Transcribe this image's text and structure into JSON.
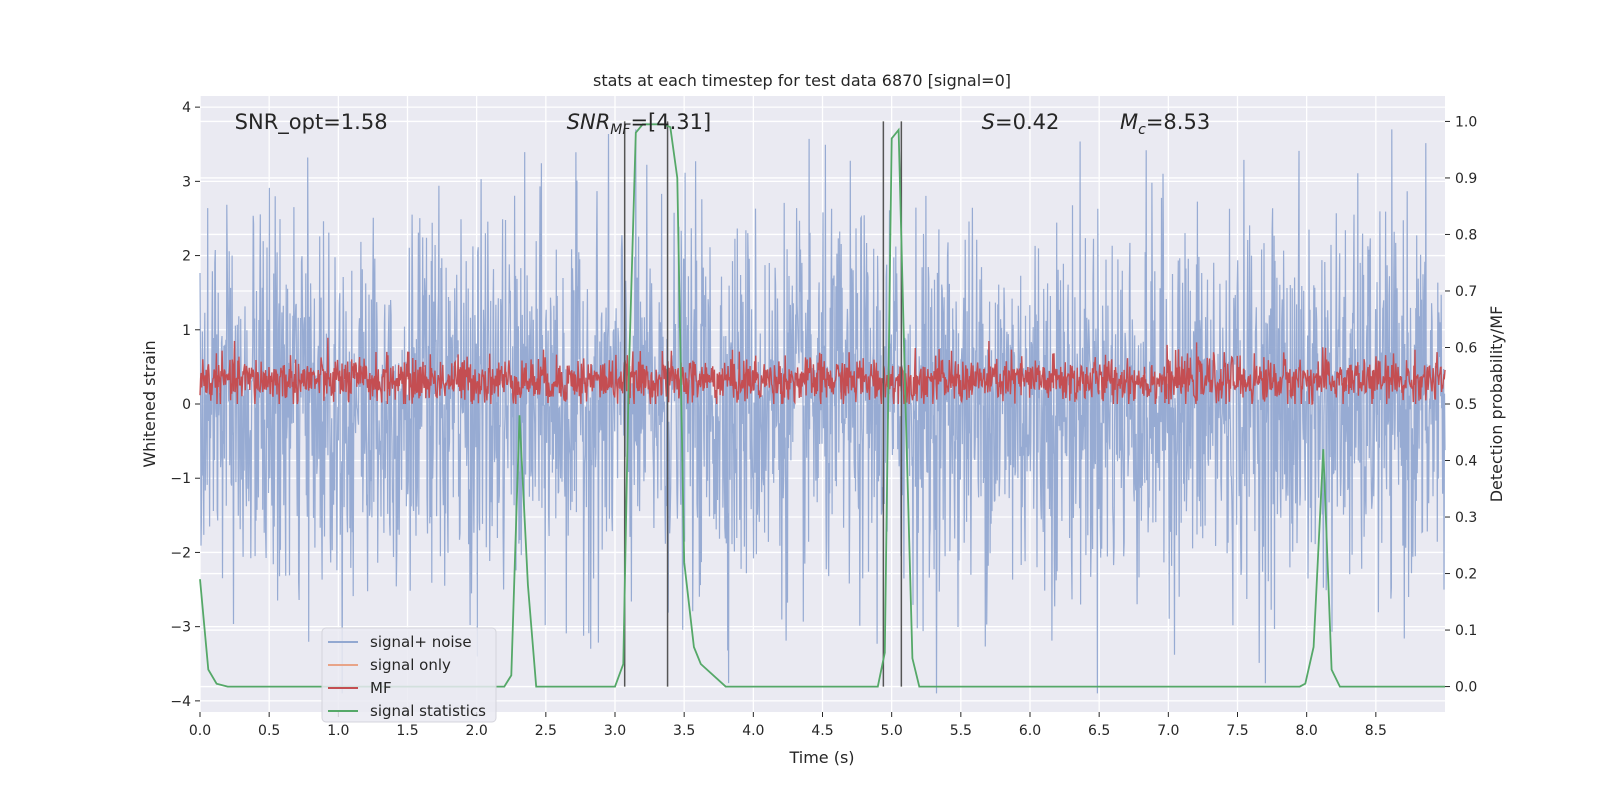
{
  "chart_data": {
    "type": "line",
    "title": "stats at each timestep for test data 6870 [signal=0]",
    "xlabel": "Time (s)",
    "ylabel": "Whitened strain",
    "y2label": "Detection probability/MF",
    "xlim": [
      0,
      9
    ],
    "ylim": [
      -4.15,
      4.15
    ],
    "y2lim": [
      -0.045,
      1.045
    ],
    "grid": true,
    "legend_position": "lower-left",
    "x_ticks": [
      "0.0",
      "0.5",
      "1.0",
      "1.5",
      "2.0",
      "2.5",
      "3.0",
      "3.5",
      "4.0",
      "4.5",
      "5.0",
      "5.5",
      "6.0",
      "6.5",
      "7.0",
      "7.5",
      "8.0",
      "8.5"
    ],
    "x_tick_values": [
      0,
      0.5,
      1,
      1.5,
      2,
      2.5,
      3,
      3.5,
      4,
      4.5,
      5,
      5.5,
      6,
      6.5,
      7,
      7.5,
      8,
      8.5
    ],
    "y_ticks": [
      "−4",
      "−3",
      "−2",
      "−1",
      "0",
      "1",
      "2",
      "3",
      "4"
    ],
    "y_tick_values": [
      -4,
      -3,
      -2,
      -1,
      0,
      1,
      2,
      3,
      4
    ],
    "y2_ticks": [
      "0.0",
      "0.1",
      "0.2",
      "0.3",
      "0.4",
      "0.5",
      "0.6",
      "0.7",
      "0.8",
      "0.9",
      "1.0"
    ],
    "y2_tick_values": [
      0,
      0.1,
      0.2,
      0.3,
      0.4,
      0.5,
      0.6,
      0.7,
      0.8,
      0.9,
      1.0
    ],
    "annotations": [
      {
        "text": "SNR_opt=1.58",
        "x": 0.2,
        "y": 3.8
      },
      {
        "text": "SNR",
        "sub": "MF",
        "rest": "=[4.31]",
        "italic": true,
        "x": 2.6,
        "y": 3.8
      },
      {
        "text": "S",
        "rest": "=0.42",
        "italic": true,
        "x": 5.6,
        "y": 3.8
      },
      {
        "text": "M",
        "sub": "c",
        "rest": "=8.53",
        "italic": true,
        "x": 6.6,
        "y": 3.8
      }
    ],
    "vertical_lines": [
      3.07,
      3.38,
      4.94,
      5.07
    ],
    "series": [
      {
        "name": "signal+ noise",
        "color": "#92a8d1",
        "axis": "left",
        "style": "noise",
        "amplitude_range": [
          -3.9,
          3.7
        ]
      },
      {
        "name": "signal only",
        "color": "#e8a488",
        "axis": "left",
        "values": []
      },
      {
        "name": "MF",
        "color": "#c44e52",
        "axis": "left",
        "style": "noise",
        "amplitude_range": [
          0.0,
          0.95
        ]
      },
      {
        "name": "signal statistics",
        "color": "#55a868",
        "axis": "right",
        "x": [
          0.0,
          0.06,
          0.12,
          0.2,
          2.2,
          2.25,
          2.31,
          2.37,
          2.43,
          2.5,
          3.0,
          3.06,
          3.1,
          3.15,
          3.2,
          3.35,
          3.4,
          3.45,
          3.5,
          3.57,
          3.62,
          3.8,
          3.85,
          4.9,
          4.95,
          5.0,
          5.05,
          5.1,
          5.15,
          5.2,
          5.5,
          7.95,
          7.99,
          8.05,
          8.12,
          8.18,
          8.24,
          8.3,
          9.0
        ],
        "y": [
          0.19,
          0.03,
          0.005,
          0.0,
          0.0,
          0.02,
          0.48,
          0.18,
          0.0,
          0.0,
          0.0,
          0.04,
          0.55,
          0.98,
          0.995,
          0.995,
          0.99,
          0.9,
          0.22,
          0.07,
          0.04,
          0.0,
          0.0,
          0.0,
          0.06,
          0.97,
          0.985,
          0.5,
          0.05,
          0.0,
          0.0,
          0.0,
          0.005,
          0.07,
          0.42,
          0.03,
          0.0,
          0.0,
          0.0
        ]
      }
    ]
  }
}
